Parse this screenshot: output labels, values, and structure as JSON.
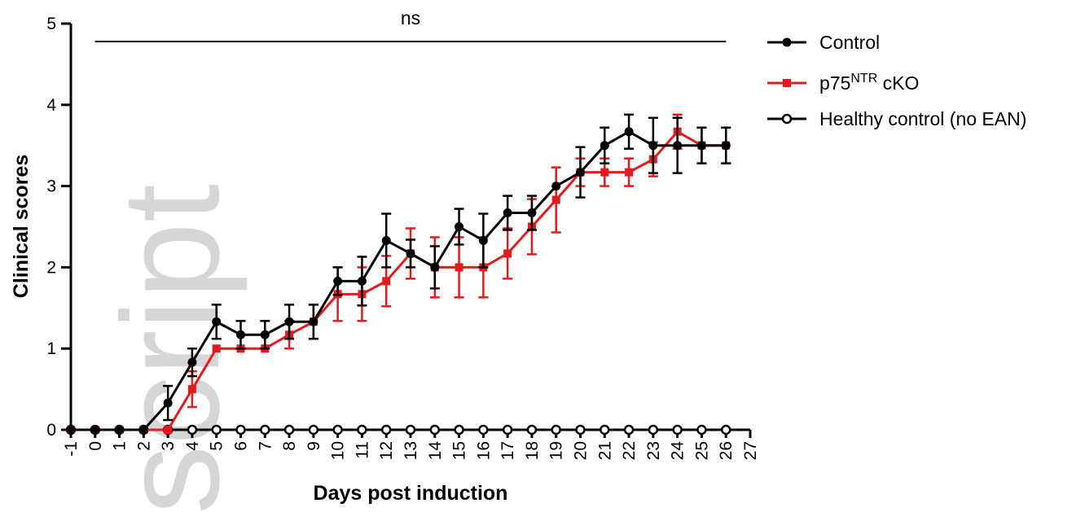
{
  "chart_data": {
    "type": "line",
    "xlabel": "Days post induction",
    "ylabel": "Clinical scores",
    "xlim": [
      -1,
      27
    ],
    "ylim": [
      0,
      5
    ],
    "x_ticks": [
      "-1",
      "0",
      "1",
      "2",
      "3",
      "4",
      "5",
      "6",
      "7",
      "8",
      "9",
      "10",
      "11",
      "12",
      "13",
      "14",
      "15",
      "16",
      "17",
      "18",
      "19",
      "20",
      "21",
      "22",
      "23",
      "24",
      "25",
      "26",
      "27"
    ],
    "y_ticks": [
      "0",
      "1",
      "2",
      "3",
      "4",
      "5"
    ],
    "annotation": "ns",
    "annotation_range": [
      0,
      26
    ],
    "annotation_y": 4.78,
    "grid": false,
    "legend_position": "top-right",
    "series": [
      {
        "name": "Control",
        "color": "#000000",
        "marker": "filled-circle",
        "x": [
          -1,
          0,
          1,
          2,
          3,
          4,
          5,
          6,
          7,
          8,
          9,
          10,
          11,
          12,
          13,
          14,
          15,
          16,
          17,
          18,
          19,
          20,
          21,
          22,
          23,
          24,
          25,
          26
        ],
        "y": [
          0,
          0,
          0,
          0,
          0.33,
          0.83,
          1.33,
          1.17,
          1.17,
          1.33,
          1.33,
          1.83,
          1.83,
          2.33,
          2.17,
          2.0,
          2.5,
          2.33,
          2.67,
          2.67,
          3.0,
          3.17,
          3.5,
          3.67,
          3.5,
          3.5,
          3.5,
          3.5
        ],
        "err": [
          0,
          0,
          0,
          0,
          0.21,
          0.17,
          0.21,
          0.17,
          0.17,
          0.21,
          0.21,
          0.17,
          0.3,
          0.33,
          0.17,
          0.26,
          0.22,
          0.33,
          0.21,
          0.21,
          0.0,
          0.31,
          0.22,
          0.21,
          0.34,
          0.34,
          0.22,
          0.22
        ]
      },
      {
        "name": "p75NTR cKO",
        "color": "#e41a1c",
        "marker": "filled-square",
        "x": [
          -1,
          0,
          1,
          2,
          3,
          4,
          5,
          6,
          7,
          8,
          9,
          10,
          11,
          12,
          13,
          14,
          15,
          16,
          17,
          18,
          19,
          20,
          21,
          22,
          23,
          24,
          25,
          26
        ],
        "y": [
          0,
          0,
          0,
          0,
          0,
          0.5,
          1.0,
          1.0,
          1.0,
          1.17,
          1.33,
          1.67,
          1.67,
          1.83,
          2.17,
          2.0,
          2.0,
          2.0,
          2.17,
          2.5,
          2.83,
          3.17,
          3.17,
          3.17,
          3.33,
          3.67,
          3.5,
          3.5
        ],
        "err": [
          0,
          0,
          0,
          0,
          0,
          0.22,
          0,
          0,
          0,
          0.17,
          0.21,
          0.33,
          0.33,
          0.31,
          0.31,
          0.37,
          0.37,
          0.37,
          0.31,
          0.34,
          0.4,
          0.17,
          0.17,
          0.17,
          0.21,
          0.21,
          0.22,
          0.22
        ]
      },
      {
        "name": "Healthy control (no EAN)",
        "color": "#000000",
        "marker": "open-circle",
        "x": [
          -1,
          0,
          1,
          2,
          3,
          4,
          5,
          6,
          7,
          8,
          9,
          10,
          11,
          12,
          13,
          14,
          15,
          16,
          17,
          18,
          19,
          20,
          21,
          22,
          23,
          24,
          25,
          26
        ],
        "y": [
          0,
          0,
          0,
          0,
          0,
          0,
          0,
          0,
          0,
          0,
          0,
          0,
          0,
          0,
          0,
          0,
          0,
          0,
          0,
          0,
          0,
          0,
          0,
          0,
          0,
          0,
          0,
          0
        ],
        "err": [
          0,
          0,
          0,
          0,
          0,
          0,
          0,
          0,
          0,
          0,
          0,
          0,
          0,
          0,
          0,
          0,
          0,
          0,
          0,
          0,
          0,
          0,
          0,
          0,
          0,
          0,
          0,
          0
        ]
      }
    ],
    "legend": [
      {
        "base": "Control",
        "sup": "",
        "suffix": ""
      },
      {
        "base": "p75",
        "sup": "NTR",
        "suffix": " cKO"
      },
      {
        "base": "Healthy control (no EAN)",
        "sup": "",
        "suffix": ""
      }
    ]
  },
  "watermark": "script"
}
